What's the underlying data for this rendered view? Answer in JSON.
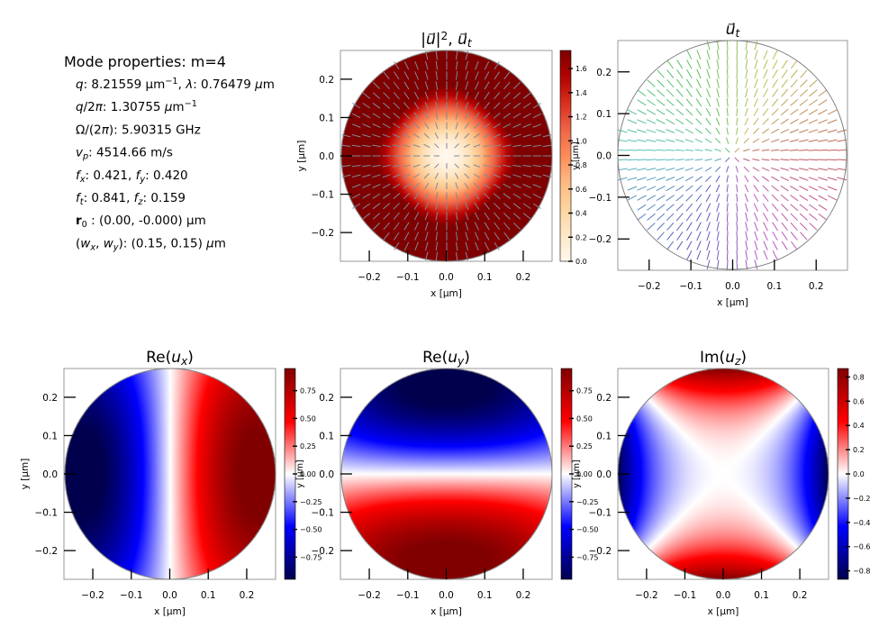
{
  "properties": {
    "title": "Mode properties: m=4",
    "lines": [
      [
        {
          "t": "q",
          "i": true
        },
        {
          "t": ": 8.21559 μm"
        },
        {
          "t": "−1",
          "sup": true
        },
        {
          "t": ", "
        },
        {
          "t": "λ",
          "i": true
        },
        {
          "t": ": 0.76479 "
        },
        {
          "t": "μ",
          "i": true
        },
        {
          "t": "m"
        }
      ],
      [
        {
          "t": "q",
          "i": true
        },
        {
          "t": "/2"
        },
        {
          "t": "π",
          "i": true
        },
        {
          "t": ": 1.30755 "
        },
        {
          "t": "μ",
          "i": true
        },
        {
          "t": "m"
        },
        {
          "t": "−1",
          "sup": true
        }
      ],
      [
        {
          "t": "Ω/(2"
        },
        {
          "t": "π",
          "i": true
        },
        {
          "t": "): 5.90315 GHz"
        }
      ],
      [
        {
          "t": "v",
          "i": true
        },
        {
          "t": "p",
          "sub": true,
          "i": true
        },
        {
          "t": ": 4514.66 m/s"
        }
      ],
      [
        {
          "t": "f",
          "i": true
        },
        {
          "t": "x",
          "sub": true,
          "i": true
        },
        {
          "t": ":  0.421, "
        },
        {
          "t": "f",
          "i": true
        },
        {
          "t": "y",
          "sub": true,
          "i": true
        },
        {
          "t": ": 0.420"
        }
      ],
      [
        {
          "t": "f",
          "i": true
        },
        {
          "t": "t",
          "sub": true,
          "i": true
        },
        {
          "t": ":  0.841, "
        },
        {
          "t": "f",
          "i": true
        },
        {
          "t": "z",
          "sub": true,
          "i": true
        },
        {
          "t": ": 0.159"
        }
      ],
      [
        {
          "t": "r",
          "b": true
        },
        {
          "t": "0",
          "sub": true
        },
        {
          "t": " :  (0.00, -0.000) μm"
        }
      ],
      [
        {
          "t": "("
        },
        {
          "t": "w",
          "i": true
        },
        {
          "t": "x",
          "sub": true,
          "i": true
        },
        {
          "t": ", "
        },
        {
          "t": "w",
          "i": true
        },
        {
          "t": "y",
          "sub": true,
          "i": true
        },
        {
          "t": "):  (0.15, 0.15) "
        },
        {
          "t": "μ",
          "i": true
        },
        {
          "t": "m"
        }
      ]
    ]
  },
  "chart_data": [
    {
      "type": "heatmap",
      "field": "intensity",
      "title": [
        {
          "t": "|"
        },
        {
          "t": "u⃗",
          "i": true
        },
        {
          "t": "|"
        },
        {
          "t": "2",
          "sup": true
        },
        {
          "t": ",  "
        },
        {
          "t": "u⃗",
          "i": true
        },
        {
          "t": "t",
          "sub": true,
          "i": true
        }
      ],
      "xlabel": "x [μm]",
      "ylabel": "y [μm]",
      "xlim": [
        -0.275,
        0.275
      ],
      "ylim": [
        -0.275,
        0.275
      ],
      "xticks": [
        -0.2,
        -0.1,
        0.0,
        0.1,
        0.2
      ],
      "yticks": [
        -0.2,
        -0.1,
        0.0,
        0.1,
        0.2
      ],
      "xtick_labels": [
        "−0.2",
        "−0.1",
        "0.0",
        "0.1",
        "0.2"
      ],
      "ytick_labels": [
        "−0.2",
        "−0.1",
        "0.0",
        "0.1",
        "0.2"
      ],
      "colormap": "OrRd",
      "clim": [
        0,
        1.75
      ],
      "colorbar_ticks": [
        0.0,
        0.2,
        0.4,
        0.6,
        0.8,
        1.0,
        1.2,
        1.4,
        1.6
      ],
      "colorbar_tick_labels": [
        "0.0",
        "0.2",
        "0.4",
        "0.6",
        "0.8",
        "1.0",
        "1.2",
        "1.4",
        "1.6"
      ],
      "colorbar_label": "y [μm]",
      "arrows": true,
      "arrow_color": "#7f8a99",
      "core_radius": 0.275
    },
    {
      "type": "quiver",
      "field": "ut",
      "title": [
        {
          "t": "u⃗",
          "i": true
        },
        {
          "t": "t",
          "sub": true,
          "i": true
        }
      ],
      "xlabel": "x [μm]",
      "ylabel": "",
      "xlim": [
        -0.275,
        0.275
      ],
      "ylim": [
        -0.275,
        0.275
      ],
      "xticks": [
        -0.2,
        -0.1,
        0.0,
        0.1,
        0.2
      ],
      "yticks": [
        -0.2,
        -0.1,
        0.0,
        0.1,
        0.2
      ],
      "xtick_labels": [
        "−0.2",
        "−0.1",
        "0.0",
        "0.1",
        "0.2"
      ],
      "ytick_labels": [
        "−0.2",
        "−0.1",
        "0.0",
        "0.1",
        "0.2"
      ],
      "core_radius": 0.275
    },
    {
      "type": "heatmap",
      "field": "rex",
      "title": [
        {
          "t": "Re("
        },
        {
          "t": "u",
          "i": true
        },
        {
          "t": "x",
          "sub": true,
          "i": true
        },
        {
          "t": ")"
        }
      ],
      "xlabel": "x [μm]",
      "ylabel": "y [μm]",
      "xlim": [
        -0.275,
        0.275
      ],
      "ylim": [
        -0.275,
        0.275
      ],
      "xticks": [
        -0.2,
        -0.1,
        0.0,
        0.1,
        0.2
      ],
      "yticks": [
        -0.2,
        -0.1,
        0.0,
        0.1,
        0.2
      ],
      "xtick_labels": [
        "−0.2",
        "−0.1",
        "0.0",
        "0.1",
        "0.2"
      ],
      "ytick_labels": [
        "−0.2",
        "−0.1",
        "0.0",
        "0.1",
        "0.2"
      ],
      "colormap": "seismic",
      "clim": [
        -0.95,
        0.95
      ],
      "colorbar_ticks": [
        -0.75,
        -0.5,
        -0.25,
        0.0,
        0.25,
        0.5,
        0.75
      ],
      "colorbar_tick_labels": [
        "−0.75",
        "−0.50",
        "−0.25",
        "0.00",
        "0.25",
        "0.50",
        "0.75"
      ],
      "colorbar_label": "y [μm]",
      "core_radius": 0.275
    },
    {
      "type": "heatmap",
      "field": "rey",
      "title": [
        {
          "t": "Re("
        },
        {
          "t": "u",
          "i": true
        },
        {
          "t": "y",
          "sub": true,
          "i": true
        },
        {
          "t": ")"
        }
      ],
      "xlabel": "x [μm]",
      "ylabel": "",
      "xlim": [
        -0.275,
        0.275
      ],
      "ylim": [
        -0.275,
        0.275
      ],
      "xticks": [
        -0.2,
        -0.1,
        0.0,
        0.1,
        0.2
      ],
      "yticks": [
        -0.2,
        -0.1,
        0.0,
        0.1,
        0.2
      ],
      "xtick_labels": [
        "−0.2",
        "−0.1",
        "0.0",
        "0.1",
        "0.2"
      ],
      "ytick_labels": [
        "−0.2",
        "−0.1",
        "0.0",
        "0.1",
        "0.2"
      ],
      "colormap": "seismic",
      "clim": [
        -0.95,
        0.95
      ],
      "colorbar_ticks": [
        -0.75,
        -0.5,
        -0.25,
        0.0,
        0.25,
        0.5,
        0.75
      ],
      "colorbar_tick_labels": [
        "−0.75",
        "−0.50",
        "−0.25",
        "0.00",
        "0.25",
        "0.50",
        "0.75"
      ],
      "colorbar_label": "y [μm]",
      "core_radius": 0.275
    },
    {
      "type": "heatmap",
      "field": "imz",
      "title": [
        {
          "t": "Im("
        },
        {
          "t": "u",
          "i": true
        },
        {
          "t": "z",
          "sub": true,
          "i": true
        },
        {
          "t": ")"
        }
      ],
      "xlabel": "x [μm]",
      "ylabel": "",
      "xlim": [
        -0.275,
        0.275
      ],
      "ylim": [
        -0.275,
        0.275
      ],
      "xticks": [
        -0.2,
        -0.1,
        0.0,
        0.1,
        0.2
      ],
      "yticks": [
        -0.2,
        -0.1,
        0.0,
        0.1,
        0.2
      ],
      "xtick_labels": [
        "−0.2",
        "−0.1",
        "0.0",
        "0.1",
        "0.2"
      ],
      "ytick_labels": [
        "−0.2",
        "−0.1",
        "0.0",
        "0.1",
        "0.2"
      ],
      "colormap": "seismic",
      "clim": [
        -0.87,
        0.87
      ],
      "colorbar_ticks": [
        -0.8,
        -0.6,
        -0.4,
        -0.2,
        0.0,
        0.2,
        0.4,
        0.6,
        0.8
      ],
      "colorbar_tick_labels": [
        "−0.8",
        "−0.6",
        "−0.4",
        "−0.2",
        "0.0",
        "0.2",
        "0.4",
        "0.6",
        "0.8"
      ],
      "colorbar_label": "",
      "core_radius": 0.275
    }
  ]
}
